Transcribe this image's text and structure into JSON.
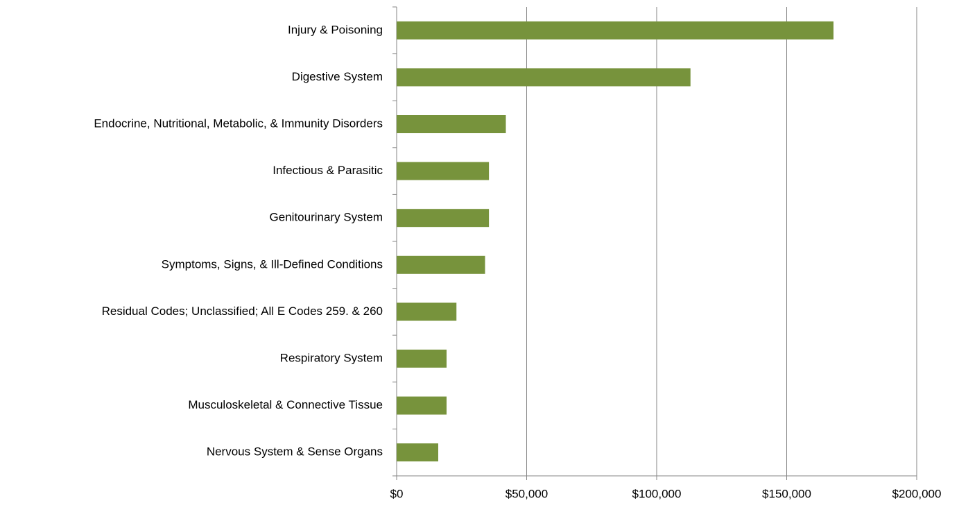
{
  "chart_data": {
    "type": "bar",
    "orientation": "horizontal",
    "categories": [
      "Injury & Poisoning",
      "Digestive System",
      "Endocrine, Nutritional, Metabolic, & Immunity Disorders",
      "Infectious & Parasitic",
      "Genitourinary System",
      "Symptoms, Signs, & Ill-Defined Conditions",
      "Residual Codes; Unclassified; All E Codes 259. & 260",
      "Respiratory System",
      "Musculoskeletal & Connective Tissue",
      "Nervous System & Sense Organs"
    ],
    "values": [
      168000,
      113000,
      42000,
      35500,
      35500,
      34000,
      23000,
      19200,
      19200,
      16000
    ],
    "color": "#77933c",
    "xlim": [
      0,
      200000
    ],
    "xticks": [
      {
        "value": 0,
        "label": "$0"
      },
      {
        "value": 50000,
        "label": "$50,000"
      },
      {
        "value": 100000,
        "label": "$100,000"
      },
      {
        "value": 150000,
        "label": "$150,000"
      },
      {
        "value": 200000,
        "label": "$200,000"
      }
    ],
    "grid": true
  }
}
